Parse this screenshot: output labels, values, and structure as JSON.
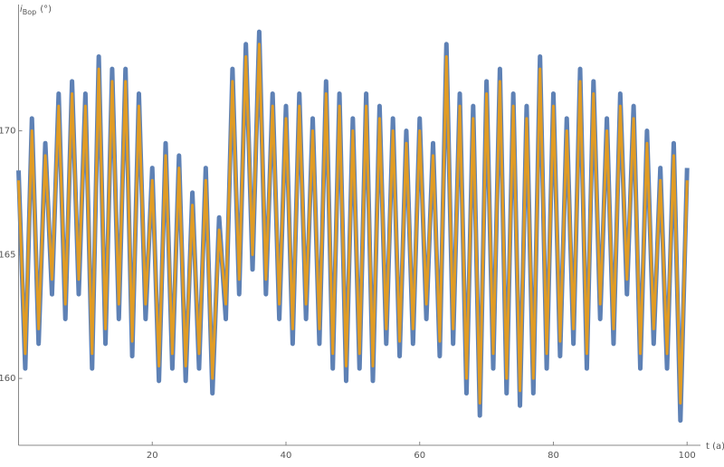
{
  "chart_data": {
    "type": "line",
    "ylabel": {
      "main": "i",
      "sub": "Bop",
      "unit": "(°)"
    },
    "xlabel": "t (a)",
    "x": [
      0,
      1,
      2,
      3,
      4,
      5,
      6,
      7,
      8,
      9,
      10,
      11,
      12,
      13,
      14,
      15,
      16,
      17,
      18,
      19,
      20,
      21,
      22,
      23,
      24,
      25,
      26,
      27,
      28,
      29,
      30,
      31,
      32,
      33,
      34,
      35,
      36,
      37,
      38,
      39,
      40,
      41,
      42,
      43,
      44,
      45,
      46,
      47,
      48,
      49,
      50,
      51,
      52,
      53,
      54,
      55,
      56,
      57,
      58,
      59,
      60,
      61,
      62,
      63,
      64,
      65,
      66,
      67,
      68,
      69,
      70,
      71,
      72,
      73,
      74,
      75,
      76,
      77,
      78,
      79,
      80,
      81,
      82,
      83,
      84,
      85,
      86,
      87,
      88,
      89,
      90,
      91,
      92,
      93,
      94,
      95,
      96,
      97,
      98,
      99,
      100
    ],
    "series": [
      {
        "color": "#5e81b5",
        "values": [
          168.4,
          160.4,
          170.5,
          161.4,
          169.5,
          163.4,
          171.5,
          162.4,
          172,
          163.4,
          171.5,
          160.4,
          173,
          161.4,
          172.5,
          162.4,
          172.5,
          160.9,
          171.5,
          162.4,
          168.5,
          159.9,
          169.5,
          160.4,
          169,
          159.9,
          167.5,
          160.4,
          168.5,
          159.4,
          166.5,
          162.4,
          172.5,
          163.4,
          173.5,
          164.4,
          174,
          163.4,
          171.5,
          162.4,
          171,
          161.4,
          171.5,
          162.4,
          170.5,
          161.4,
          172,
          160.4,
          171.5,
          159.9,
          170.5,
          160.4,
          171.5,
          159.9,
          171,
          161.4,
          170.5,
          160.9,
          170,
          161.4,
          170.5,
          162.4,
          169.5,
          160.9,
          173.5,
          161.4,
          171.5,
          159.4,
          171,
          158.5,
          172,
          160.4,
          172.5,
          159.4,
          171.5,
          158.9,
          171,
          159.4,
          173,
          160.4,
          171.5,
          160.9,
          170.5,
          161.4,
          172.5,
          160.4,
          172,
          162.4,
          170.5,
          161.4,
          171.5,
          163.4,
          171,
          160.4,
          170,
          161.4,
          168.5,
          160.4,
          169.5,
          158.3,
          168.5
        ]
      },
      {
        "color": "#e19c24",
        "values": [
          168,
          161,
          170,
          162,
          169,
          164,
          171,
          163,
          171.5,
          164,
          171,
          161,
          172.5,
          162,
          172,
          163,
          172,
          161.5,
          171,
          163,
          168,
          160.5,
          169,
          161,
          168.5,
          160.5,
          167,
          161,
          168,
          160,
          166,
          163,
          172,
          164,
          173,
          165,
          173.5,
          164,
          171,
          163,
          170.5,
          162,
          171,
          163,
          170,
          162,
          171.5,
          161,
          171,
          160.5,
          170,
          161,
          171,
          160.5,
          170.5,
          162,
          170,
          161.5,
          169.5,
          162,
          170,
          163,
          169,
          161.5,
          173,
          162,
          171,
          160,
          170.5,
          159,
          171.5,
          161,
          172,
          160,
          171,
          159.5,
          170.5,
          160,
          172.5,
          161,
          171,
          161.5,
          170,
          162,
          172,
          161,
          171.5,
          163,
          170,
          162,
          171,
          164,
          170.5,
          161,
          169.5,
          162,
          168,
          161,
          169,
          159,
          168
        ]
      }
    ],
    "xlim": [
      0,
      102
    ],
    "ylim": [
      157.3,
      175.1
    ],
    "xticks": [
      20,
      40,
      60,
      80,
      100
    ],
    "yticks": [
      160,
      165,
      170
    ]
  }
}
